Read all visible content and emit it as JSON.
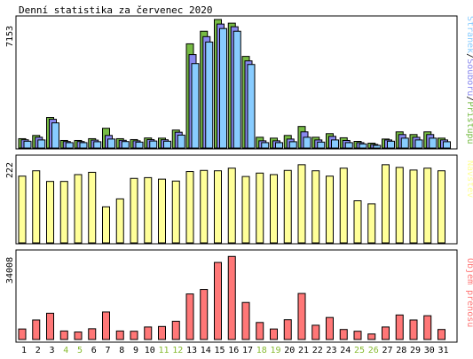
{
  "chart_data": {
    "type": "bar",
    "title": "Denní statistika za červenec 2020",
    "categories": [
      "1",
      "2",
      "3",
      "4",
      "5",
      "6",
      "7",
      "8",
      "9",
      "10",
      "11",
      "12",
      "13",
      "14",
      "15",
      "16",
      "17",
      "18",
      "19",
      "20",
      "21",
      "22",
      "23",
      "24",
      "25",
      "26",
      "27",
      "28",
      "29",
      "30",
      "31"
    ],
    "weekend_days": [
      "4",
      "5",
      "11",
      "12",
      "18",
      "19",
      "25",
      "26"
    ],
    "colors": {
      "pristupu": "#77bb44",
      "souboru": "#8888ee",
      "stranek": "#88ccff",
      "navstev": "#ffff99",
      "objem": "#ff7777",
      "weekend_label": "#88bb33",
      "weekday_label": "#000000"
    },
    "panels": [
      {
        "name": "requests",
        "ymax_label": "7153",
        "ylim": [
          0,
          7153
        ],
        "legend_parts": [
          "Stránek",
          "Souborů",
          "Přístupů"
        ],
        "legend_separator": "/",
        "series": [
          {
            "name": "Přístupů",
            "values": [
              520,
              700,
              1700,
              420,
              420,
              520,
              1100,
              520,
              470,
              560,
              550,
              1000,
              5800,
              6500,
              7153,
              6950,
              5100,
              600,
              550,
              700,
              1200,
              600,
              800,
              570,
              370,
              270,
              500,
              900,
              750,
              900,
              550
            ]
          },
          {
            "name": "Souborů",
            "values": [
              460,
              600,
              1600,
              360,
              360,
              440,
              700,
              430,
              400,
              470,
              460,
              880,
              5200,
              6200,
              6900,
              6750,
              4850,
              400,
              400,
              500,
              900,
              450,
              650,
              420,
              300,
              200,
              450,
              750,
              600,
              750,
              450
            ]
          },
          {
            "name": "Stránek",
            "values": [
              380,
              450,
              1400,
              300,
              300,
              350,
              500,
              360,
              330,
              390,
              380,
              720,
              4700,
              5900,
              6650,
              6500,
              4650,
              300,
              300,
              350,
              600,
              330,
              450,
              300,
              230,
              150,
              380,
              550,
              450,
              550,
              350
            ]
          }
        ]
      },
      {
        "name": "visits",
        "ymax_label": "222",
        "ylim": [
          0,
          222
        ],
        "legend_parts": [
          "Návštěv"
        ],
        "series": [
          {
            "name": "Návštěv",
            "values": [
              176,
              190,
              162,
              162,
              180,
              186,
              95,
              116,
              170,
              172,
              168,
              163,
              188,
              191,
              190,
              197,
              175,
              184,
              180,
              191,
              206,
              190,
              176,
              197,
              111,
              103,
              206,
              199,
              192,
              197,
              190
            ]
          }
        ]
      },
      {
        "name": "volume",
        "ymax_label": "34008",
        "ylim": [
          0,
          34008
        ],
        "legend_parts": [
          "Objem přenosu"
        ],
        "series": [
          {
            "name": "Objem přenosu",
            "values": [
              4200,
              7800,
              10500,
              3400,
              3000,
              4300,
              11000,
              3400,
              3300,
              5000,
              5200,
              7300,
              18200,
              20000,
              30800,
              33200,
              14800,
              6800,
              4200,
              7900,
              18400,
              5700,
              8800,
              4000,
              3300,
              2200,
              5000,
              9800,
              7800,
              9500,
              4000
            ]
          }
        ]
      }
    ]
  }
}
